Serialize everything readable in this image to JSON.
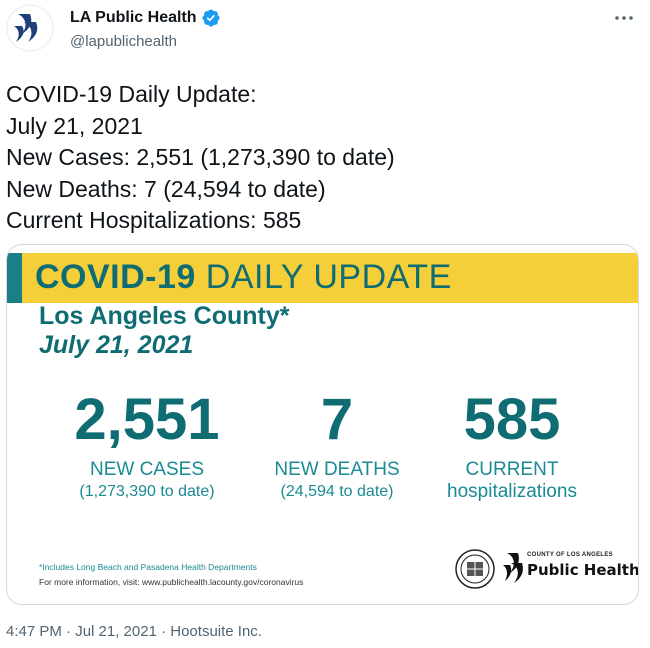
{
  "account": {
    "display_name": "LA Public Health",
    "handle": "@lapublichealth",
    "avatar_icon": "la-public-health-logo-icon",
    "verified_icon": "verified-badge-icon",
    "verified_color": "#1d9bf0"
  },
  "tweet": {
    "lines": [
      "COVID-19 Daily Update:",
      "July 21, 2021",
      "New Cases: 2,551 (1,273,390 to date)",
      "New Deaths: 7 (24,594 to date)",
      "Current Hospitalizations: 585"
    ]
  },
  "card": {
    "banner_bold": "COVID-19",
    "banner_rest": "DAILY UPDATE",
    "county": "Los Angeles County*",
    "date": "July 21, 2021",
    "stats": [
      {
        "value": "2,551",
        "label": "NEW CASES",
        "sub": "(1,273,390 to date)"
      },
      {
        "value": "7",
        "label": "NEW DEATHS",
        "sub": "(24,594 to date)"
      },
      {
        "value": "585",
        "label": "CURRENT",
        "sub": "hospitalizations"
      }
    ],
    "footnote": "*Includes Long Beach and Pasadena Health Departments",
    "more_info": "For more information, visit: www.publichealth.lacounty.gov/coronavirus",
    "logo_small": "COUNTY OF LOS ANGELES",
    "logo_big": "Public Health",
    "colors": {
      "banner": "#f5cf3a",
      "teal": "#0f6c73",
      "accent": "#1a7f86"
    }
  },
  "footer": {
    "meta": "4:47 PM · Jul 21, 2021 · Hootsuite Inc."
  }
}
